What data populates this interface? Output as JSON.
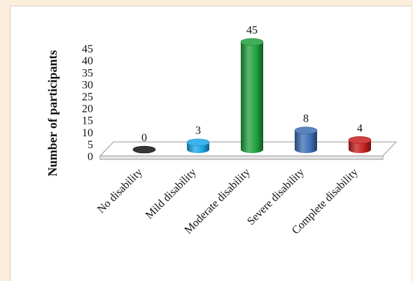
{
  "chart_data": {
    "type": "bar",
    "categories": [
      "No disability",
      "Mild disability",
      "Moderate disability",
      "Severe disability",
      "Complete disability"
    ],
    "values": [
      0,
      3,
      45,
      8,
      4
    ],
    "data_labels": [
      "0",
      "3",
      "45",
      "8",
      "4"
    ],
    "colors": [
      "#111111",
      "#1aa7e8",
      "#1fa13c",
      "#3e6fb5",
      "#c81f1f"
    ],
    "title": "",
    "xlabel": "",
    "ylabel": "Number of participants",
    "ylim": [
      0,
      45
    ],
    "yticks": [
      0,
      5,
      10,
      15,
      20,
      25,
      30,
      35,
      40,
      45
    ],
    "grid": false,
    "style": "3d-cylinder"
  }
}
